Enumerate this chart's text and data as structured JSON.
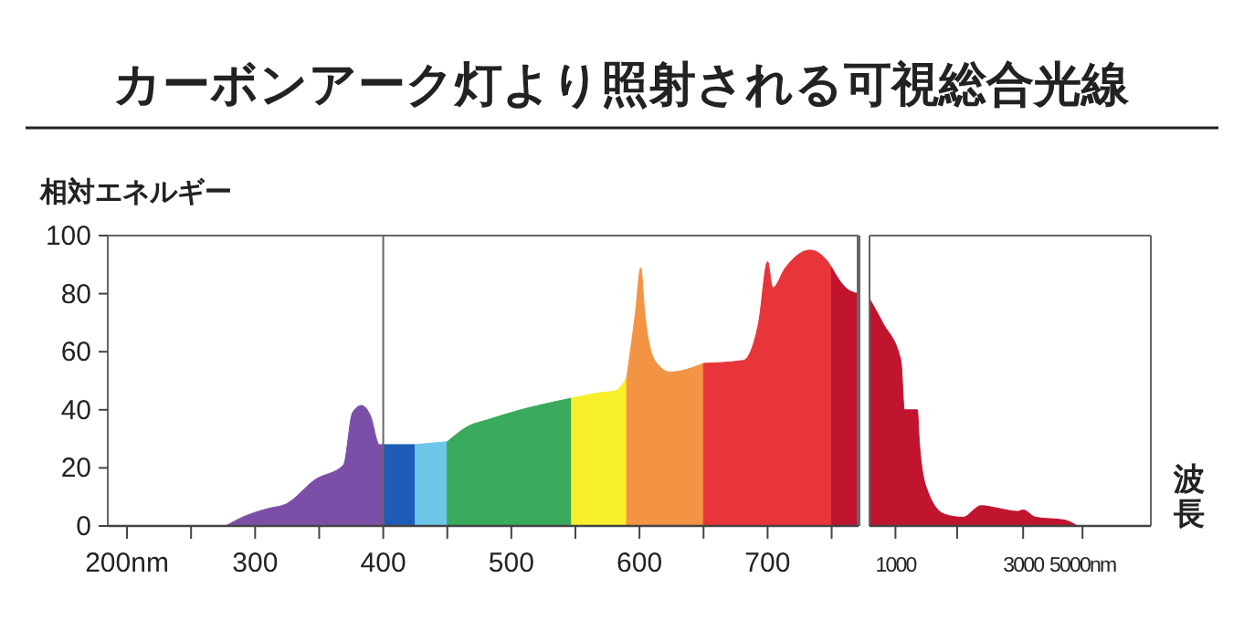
{
  "chart_data": [
    {
      "type": "area",
      "title": "カーボンアーク灯より照射される可視総合光線",
      "ylabel": "相対エネルギー",
      "xlim": [
        185,
        771
      ],
      "ylim": [
        0,
        100
      ],
      "xticks": [
        {
          "value": 200,
          "label": "200nm"
        },
        {
          "value": 250,
          "label": null
        },
        300,
        {
          "value": 350,
          "label": null
        },
        400,
        {
          "value": 450,
          "label": null
        },
        500,
        {
          "value": 550,
          "label": null
        },
        600,
        {
          "value": 650,
          "label": null
        },
        700,
        {
          "value": 750,
          "label": null
        }
      ],
      "yticks": [
        0,
        20,
        40,
        60,
        80,
        100
      ],
      "grid": false,
      "ref_lines": [
        {
          "axis": "x",
          "value": 400,
          "color": "#666666"
        }
      ],
      "series": [
        {
          "color": "#7b4fa8",
          "x": [
            277,
            290,
            310,
            324,
            347,
            369,
            376,
            383,
            390,
            397,
            400
          ],
          "values": [
            0,
            3,
            6,
            7.5,
            16,
            21,
            39,
            41.5,
            38,
            28,
            28
          ]
        },
        {
          "color": "#1f5bb8",
          "x": [
            400,
            425
          ],
          "values": [
            28,
            28
          ]
        },
        {
          "color": "#6ec6e8",
          "x": [
            425,
            437,
            450
          ],
          "values": [
            28,
            28.5,
            29
          ]
        },
        {
          "color": "#3aaa5c",
          "x": [
            450,
            467,
            481,
            504,
            547
          ],
          "values": [
            29,
            34.5,
            36.5,
            39.6,
            44
          ]
        },
        {
          "color": "#f7ef2a",
          "x": [
            547,
            571,
            581,
            590
          ],
          "values": [
            44,
            46,
            46.5,
            51
          ]
        },
        {
          "color": "#f39344",
          "x": [
            590,
            597,
            601,
            604,
            612,
            624,
            650
          ],
          "values": [
            51,
            74,
            89,
            74,
            57,
            53,
            56
          ]
        },
        {
          "color": "#e8353a",
          "x": [
            650,
            681,
            693,
            700,
            704,
            714,
            733,
            747,
            750
          ],
          "values": [
            56,
            57,
            70,
            91,
            82,
            89,
            95,
            91,
            89
          ]
        },
        {
          "color": "#c0142f",
          "x": [
            750,
            761,
            771
          ],
          "values": [
            89,
            82,
            80
          ]
        }
      ]
    },
    {
      "type": "area",
      "xlabel": "波長",
      "log": "x",
      "xlim": [
        800,
        9000
      ],
      "ylim": [
        0,
        100
      ],
      "xticks": [
        1000,
        {
          "value": 1700,
          "label": null
        },
        3000,
        {
          "value": 5000,
          "label": "5000nm"
        }
      ],
      "tick_labels": "x",
      "grid": false,
      "series": [
        {
          "color": "#c0142f",
          "x": [
            803,
            896,
            1048,
            1080,
            1207,
            1230,
            1307,
            1528,
            1787,
            2090,
            2445,
            2860,
            3000,
            3340,
            4300,
            4790
          ],
          "values": [
            78,
            70,
            57,
            40,
            40,
            28,
            13,
            4,
            3,
            7,
            6,
            5,
            5.5,
            3,
            2,
            0
          ]
        }
      ]
    }
  ]
}
